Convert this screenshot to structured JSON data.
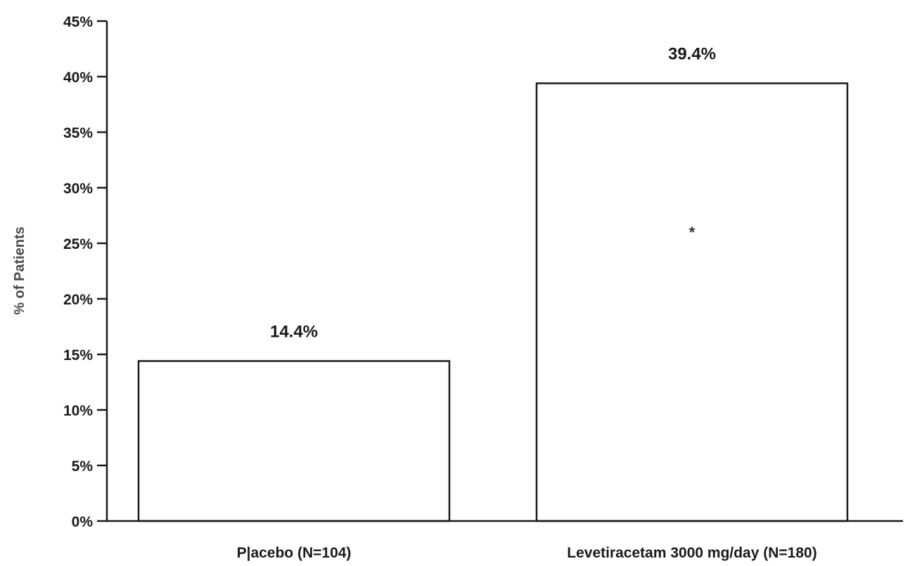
{
  "chart_data": {
    "type": "bar",
    "title": "",
    "xlabel": "",
    "ylabel": "% of Patients",
    "categories": [
      "P|acebo (N=104)",
      "Levetiracetam 3000 mg/day (N=180)"
    ],
    "values": [
      14.4,
      39.4
    ],
    "value_labels": [
      "14.4%",
      "39.4%"
    ],
    "ylim": [
      0,
      45
    ],
    "yticks": [
      0,
      5,
      10,
      15,
      20,
      25,
      30,
      35,
      40,
      45
    ],
    "ytick_labels": [
      "0%",
      "5%",
      "10%",
      "15%",
      "20%",
      "25%",
      "30%",
      "35%",
      "40%",
      "45%"
    ],
    "annotations": [
      {
        "text": "*",
        "category": "Levetiracetam 3000 mg/day (N=180)"
      }
    ],
    "bar_fill": "#ffffff",
    "bar_stroke": "#1a1a1a",
    "axis_color": "#1a1a1a",
    "grid": false,
    "legend": "none"
  }
}
